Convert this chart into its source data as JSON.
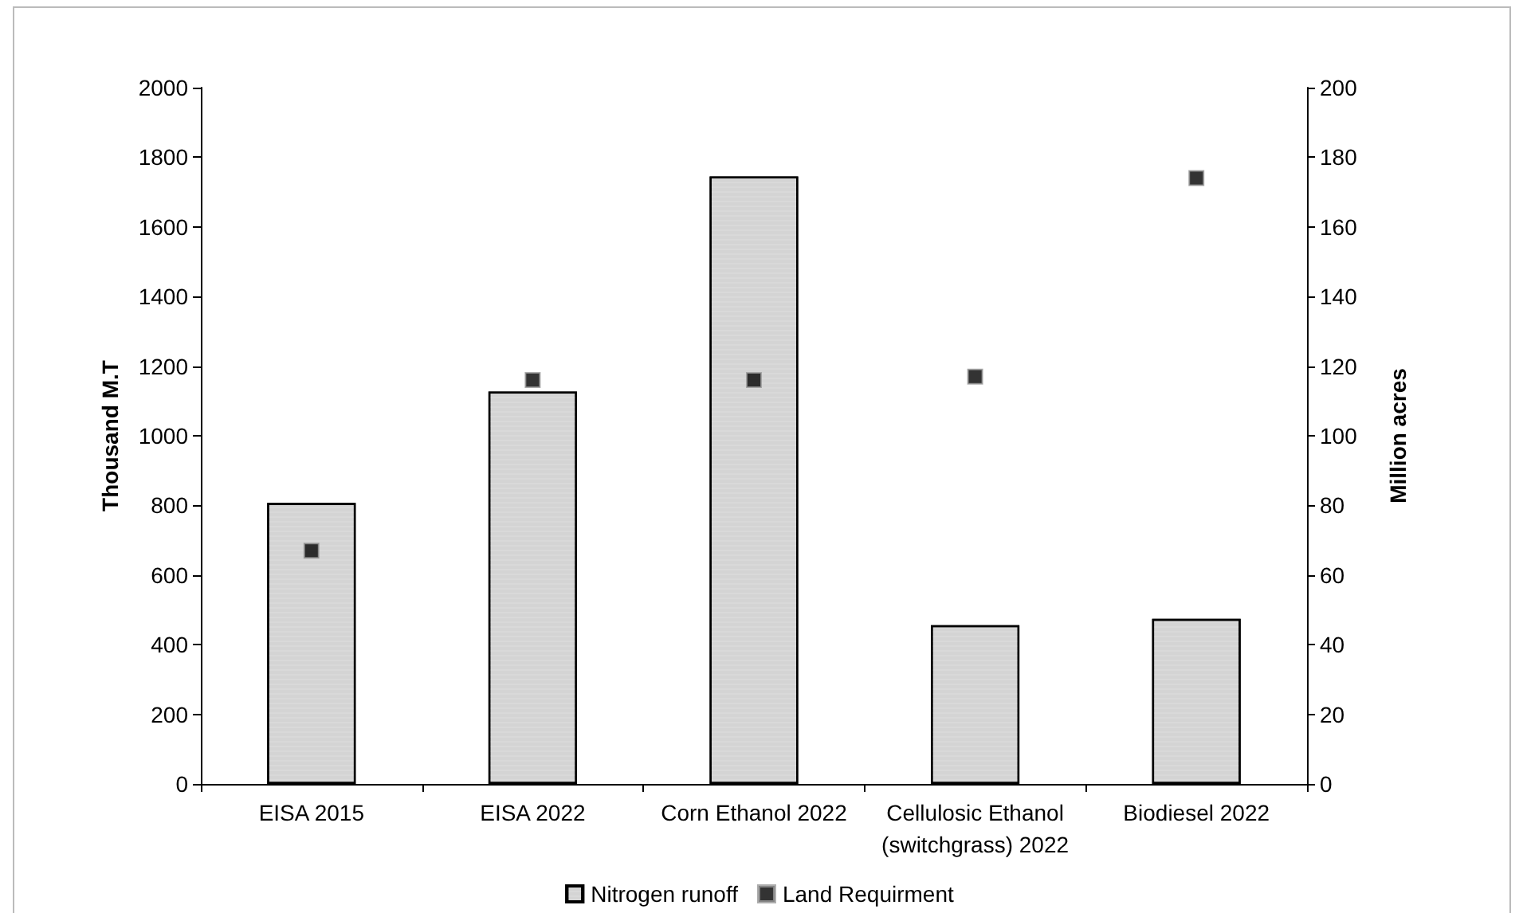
{
  "chart_data": {
    "type": "bar",
    "ylabel": "Thousand M.T",
    "y2label": "Million acres",
    "categories": [
      "EISA 2015",
      "EISA 2022",
      "Corn Ethanol 2022",
      "Cellulosic Ethanol\n(switchgrass) 2022",
      "Biodiesel 2022"
    ],
    "series": [
      {
        "name": "Nitrogen runoff",
        "color": "#d4d4d4",
        "values": [
          807,
          1127,
          1745,
          456,
          474
        ]
      },
      {
        "name": "Land Requirment",
        "type": "scatter",
        "axis": "y2",
        "color": "#000000",
        "marker": "square",
        "values": [
          67,
          116,
          116,
          117,
          174
        ]
      }
    ],
    "ylim": [
      0,
      2000
    ],
    "yticks": [
      0,
      200,
      400,
      600,
      800,
      1000,
      1200,
      1400,
      1600,
      1800,
      2000
    ],
    "y2lim": [
      0,
      200
    ],
    "y2ticks": [
      0,
      20,
      40,
      60,
      80,
      100,
      120,
      140,
      160,
      180,
      200
    ],
    "grid": false,
    "legend": "bottom"
  }
}
